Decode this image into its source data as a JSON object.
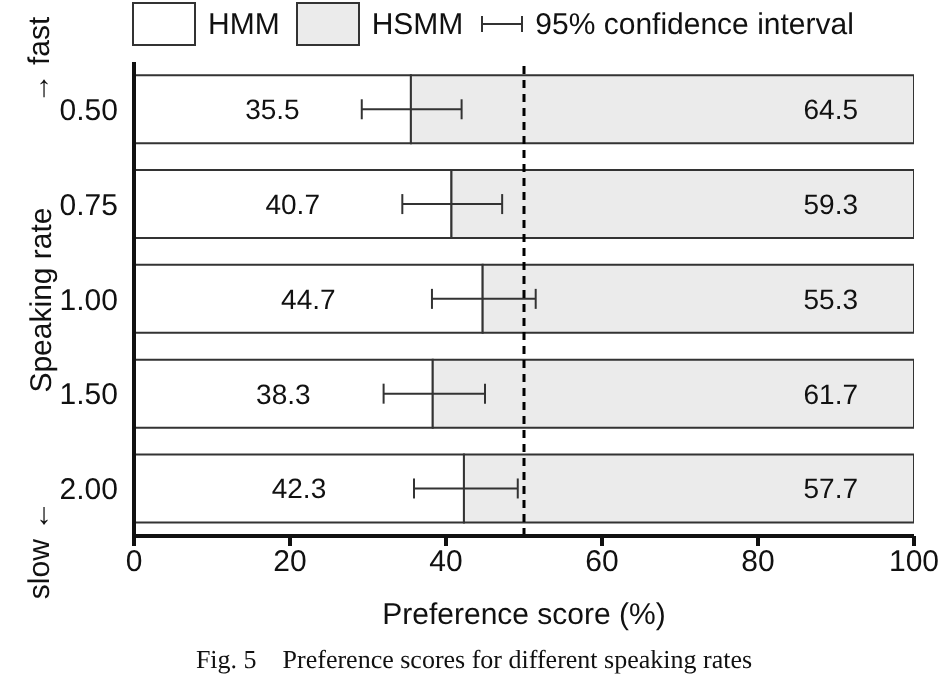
{
  "chart_data": {
    "type": "bar",
    "orientation": "horizontal",
    "stacked": true,
    "categories": [
      "0.50",
      "0.75",
      "1.00",
      "1.50",
      "2.00"
    ],
    "series": [
      {
        "name": "HMM",
        "color": "#ffffff",
        "values": [
          35.5,
          40.7,
          44.7,
          38.3,
          42.3
        ],
        "errors": [
          [
            29.2,
            42.0
          ],
          [
            34.4,
            47.2
          ],
          [
            38.2,
            51.5
          ],
          [
            32.0,
            45.0
          ],
          [
            35.9,
            49.2
          ]
        ]
      },
      {
        "name": "HSMM",
        "color": "#ebebeb",
        "values": [
          64.5,
          59.3,
          55.3,
          61.7,
          57.7
        ]
      }
    ],
    "xlim": [
      0,
      100
    ],
    "xticks": [
      0,
      20,
      40,
      60,
      80,
      100
    ],
    "xlabel": "Preference score (%)",
    "ylabel": "Speaking rate",
    "ref_lines": [
      {
        "axis": "x",
        "value": 50,
        "line_style": "dashed",
        "color": "#000000"
      }
    ],
    "data_labels": true,
    "grid": false,
    "legend": "top",
    "annotations": [
      "95% confidence interval",
      "→ fast",
      "slow ←",
      "Fig. 5    Preference scores for different speaking rates"
    ]
  }
}
